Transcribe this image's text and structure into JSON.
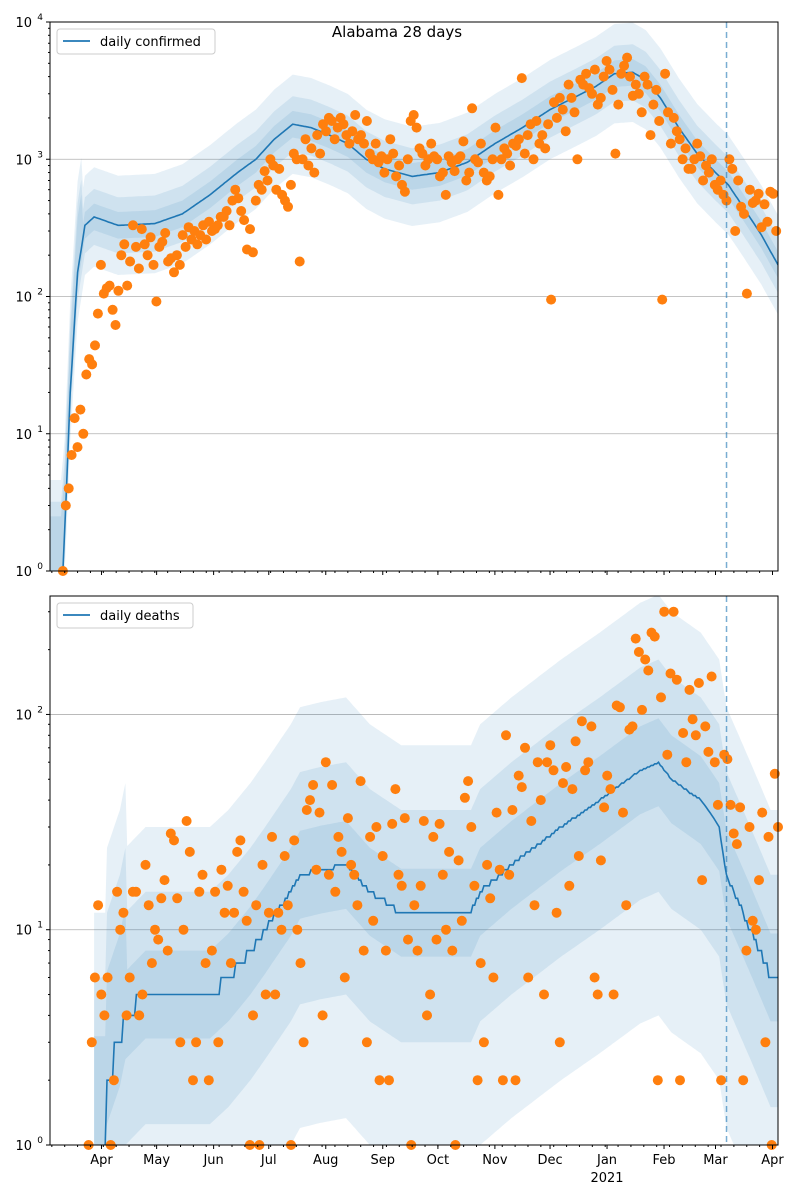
{
  "title": "Alabama 28 days",
  "chart_data": [
    {
      "type": "line",
      "panel": "top",
      "title": "Alabama 28 days",
      "legend": [
        "daily confirmed"
      ],
      "legend_placement": "top-left",
      "yscale": "log",
      "ylim": [
        1,
        10000
      ],
      "yticks": [
        {
          "base": "10",
          "exp": "0"
        },
        {
          "base": "10",
          "exp": "1"
        },
        {
          "base": "10",
          "exp": "2"
        },
        {
          "base": "10",
          "exp": "3"
        },
        {
          "base": "10",
          "exp": "4"
        }
      ],
      "x_unit": "days since 2020-03-01",
      "xlim": [
        3,
        399
      ],
      "grid": "y-major",
      "vline_day": 371,
      "model": [
        [
          9,
          1
        ],
        [
          11,
          2
        ],
        [
          14,
          20
        ],
        [
          18,
          150
        ],
        [
          22,
          330
        ],
        [
          27,
          380
        ],
        [
          40,
          330
        ],
        [
          60,
          340
        ],
        [
          75,
          400
        ],
        [
          90,
          550
        ],
        [
          105,
          800
        ],
        [
          115,
          1000
        ],
        [
          125,
          1400
        ],
        [
          135,
          1800
        ],
        [
          145,
          1700
        ],
        [
          155,
          1500
        ],
        [
          165,
          1300
        ],
        [
          175,
          1000
        ],
        [
          185,
          850
        ],
        [
          200,
          750
        ],
        [
          215,
          800
        ],
        [
          230,
          950
        ],
        [
          245,
          1300
        ],
        [
          260,
          1700
        ],
        [
          275,
          2300
        ],
        [
          290,
          2900
        ],
        [
          300,
          3400
        ],
        [
          310,
          4200
        ],
        [
          320,
          4300
        ],
        [
          327,
          3800
        ],
        [
          335,
          2800
        ],
        [
          345,
          1700
        ],
        [
          355,
          1100
        ],
        [
          365,
          800
        ],
        [
          372,
          650
        ],
        [
          380,
          450
        ],
        [
          390,
          280
        ],
        [
          399,
          170
        ]
      ],
      "band_upper_factors": [
        1.25,
        1.6,
        2.3
      ],
      "band_lower_factors": [
        1.25,
        1.6,
        2.3
      ],
      "observed": {
        "day_start": 10,
        "day_end": 398,
        "values": [
          1,
          3,
          4,
          7,
          13,
          8,
          15,
          10,
          27,
          35,
          32,
          44,
          75,
          170,
          105,
          115,
          120,
          80,
          62,
          110,
          200,
          240,
          120,
          180,
          330,
          230,
          160,
          310,
          240,
          200,
          270,
          170,
          92,
          230,
          250,
          290,
          180,
          190,
          150,
          200,
          170,
          280,
          230,
          320,
          260,
          300,
          240,
          280,
          330,
          260,
          350,
          300,
          310,
          330,
          380,
          380,
          420,
          330,
          500,
          600,
          520,
          420,
          360,
          220,
          310,
          210,
          500,
          650,
          600,
          820,
          700,
          1000,
          900,
          600,
          850,
          550,
          500,
          450,
          650,
          1100,
          1000,
          180,
          1000,
          1400,
          900,
          1200,
          800,
          1500,
          1100,
          1800,
          1600,
          2000,
          1900,
          1400,
          1700,
          2000,
          1800,
          1500,
          1300,
          1600,
          2100,
          1400,
          1500,
          1300,
          1900,
          1100,
          1000,
          1300,
          950,
          1050,
          800,
          1000,
          1400,
          1100,
          750,
          900,
          650,
          580,
          1000,
          1900,
          2100,
          1700,
          1200,
          1100,
          900,
          1000,
          1300,
          1050,
          1000,
          750,
          800,
          550,
          1050,
          950,
          820,
          1000,
          1050,
          1350,
          700,
          800,
          2350,
          1000,
          950,
          1300,
          800,
          700,
          750,
          1000,
          1700,
          550,
          1000,
          1200,
          1100,
          900,
          1300,
          1250,
          1400,
          3900,
          1100,
          1500,
          1800,
          1000,
          1900,
          1300,
          1500,
          1200,
          1800,
          95,
          2600,
          2000,
          2800,
          2300,
          1600,
          3500,
          2800,
          2200,
          1000,
          3800,
          3500,
          4200,
          3300,
          3000,
          4500,
          2500,
          2800,
          4000,
          5200,
          4500,
          3200,
          1100,
          2500,
          4200,
          4800,
          5500,
          4000,
          2900,
          3500,
          3000,
          2200,
          4000,
          3500,
          1500,
          2500,
          3200,
          1900,
          95,
          4200,
          2200,
          1300,
          2000,
          1600,
          1400,
          1000,
          1200,
          850,
          850,
          1000,
          1300,
          1050,
          700,
          900,
          800,
          1000,
          650,
          600,
          700,
          550,
          500,
          1000,
          850,
          300,
          700,
          450,
          400,
          105,
          600,
          480,
          500,
          560,
          320,
          470,
          350,
          580,
          560,
          300
        ]
      }
    },
    {
      "type": "line",
      "panel": "bottom",
      "legend": [
        "daily deaths"
      ],
      "legend_placement": "top-left",
      "yscale": "log",
      "ylim": [
        1,
        355
      ],
      "yticks": [
        {
          "base": "10",
          "exp": "0"
        },
        {
          "base": "10",
          "exp": "1"
        },
        {
          "base": "10",
          "exp": "2"
        }
      ],
      "x_unit": "days since 2020-03-01",
      "xlim": [
        3,
        399
      ],
      "xticks": [
        {
          "day": 31,
          "label": "Apr"
        },
        {
          "day": 61,
          "label": "May"
        },
        {
          "day": 92,
          "label": "Jun"
        },
        {
          "day": 122,
          "label": "Jul"
        },
        {
          "day": 153,
          "label": "Aug"
        },
        {
          "day": 184,
          "label": "Sep"
        },
        {
          "day": 214,
          "label": "Oct"
        },
        {
          "day": 245,
          "label": "Nov"
        },
        {
          "day": 275,
          "label": "Dec"
        },
        {
          "day": 306,
          "label": "Jan"
        },
        {
          "day": 337,
          "label": "Feb"
        },
        {
          "day": 365,
          "label": "Mar"
        },
        {
          "day": 396,
          "label": "Apr"
        }
      ],
      "year_label": "2021",
      "grid": "y-major",
      "vline_day": 371,
      "model": [
        [
          33,
          1
        ],
        [
          34,
          2
        ],
        [
          41,
          3
        ],
        [
          44,
          4
        ],
        [
          55,
          5
        ],
        [
          90,
          5
        ],
        [
          100,
          6
        ],
        [
          112,
          8
        ],
        [
          120,
          10
        ],
        [
          134,
          15
        ],
        [
          139,
          18
        ],
        [
          150,
          19
        ],
        [
          164,
          20
        ],
        [
          177,
          15
        ],
        [
          194,
          12
        ],
        [
          232,
          12
        ],
        [
          237,
          15
        ],
        [
          254,
          20
        ],
        [
          281,
          30
        ],
        [
          302,
          40
        ],
        [
          324,
          55
        ],
        [
          334,
          60
        ],
        [
          341,
          50
        ],
        [
          357,
          40
        ],
        [
          367,
          30
        ],
        [
          371,
          18
        ],
        [
          384,
          10
        ],
        [
          395,
          6
        ],
        [
          399,
          6
        ]
      ],
      "band_upper_factors": [
        1.6,
        3,
        6
      ],
      "band_lower_factors": [
        1.6,
        4,
        15
      ],
      "observed": {
        "day_start": 24,
        "day_end": 399,
        "values": [
          1,
          3,
          6,
          13,
          5,
          4,
          6,
          1,
          2,
          15,
          10,
          12,
          4,
          6,
          15,
          15,
          4,
          5,
          20,
          13,
          7,
          10,
          9,
          14,
          17,
          8,
          28,
          26,
          14,
          3,
          10,
          32,
          23,
          2,
          3,
          15,
          18,
          7,
          2,
          8,
          15,
          3,
          19,
          12,
          16,
          7,
          12,
          23,
          26,
          15,
          11,
          1,
          4,
          13,
          1,
          20,
          5,
          12,
          27,
          5,
          12,
          10,
          22,
          13,
          1,
          26,
          10,
          7,
          3,
          36,
          40,
          47,
          19,
          35,
          4,
          60,
          18,
          47,
          15,
          27,
          23,
          6,
          33,
          20,
          18,
          13,
          49,
          8,
          3,
          27,
          11,
          30,
          2,
          22,
          8,
          2,
          31,
          45,
          18,
          16,
          33,
          9,
          1,
          13,
          8,
          16,
          32,
          4,
          5,
          27,
          9,
          31,
          18,
          10,
          23,
          8,
          1,
          21,
          11,
          41,
          49,
          30,
          16,
          2,
          7,
          3,
          20,
          14,
          6,
          35,
          19,
          2,
          80,
          18,
          36,
          2,
          52,
          46,
          70,
          6,
          32,
          13,
          60,
          40,
          5,
          60,
          72,
          55,
          12,
          3,
          48,
          57,
          16,
          45,
          75,
          22,
          93,
          55,
          60,
          88,
          6,
          5,
          21,
          37,
          52,
          45,
          5,
          110,
          108,
          35,
          13,
          85,
          88,
          225,
          195,
          105,
          180,
          160,
          240,
          230,
          2,
          120,
          300,
          65,
          155,
          300,
          145,
          2,
          82,
          60,
          130,
          95,
          80,
          140,
          17,
          88,
          67,
          150,
          60,
          38,
          2,
          65,
          62,
          38,
          28,
          25,
          37,
          2,
          8,
          30,
          11,
          10,
          17,
          35,
          3,
          27,
          1,
          53,
          30
        ]
      }
    }
  ],
  "colors": {
    "model": "#1f77b4",
    "observed": "#ff7f0e",
    "grid": "#b0b0b0"
  }
}
